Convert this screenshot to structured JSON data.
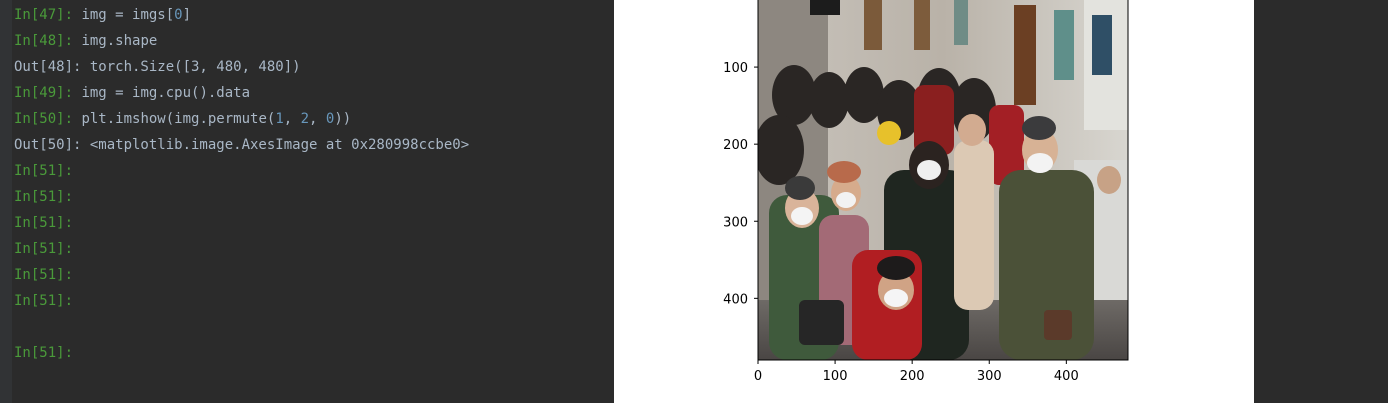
{
  "console": {
    "lines": [
      {
        "prompt": "In[47]: ",
        "kind": "in",
        "code": [
          {
            "t": "img = imgs["
          },
          {
            "t": "0",
            "num": true
          },
          {
            "t": "]"
          }
        ]
      },
      {
        "prompt": "In[48]: ",
        "kind": "in",
        "code": [
          {
            "t": "img.shape"
          }
        ]
      },
      {
        "prompt": "Out[48]: ",
        "kind": "out",
        "code": [
          {
            "t": "torch.Size([3, 480, 480])"
          }
        ]
      },
      {
        "prompt": "In[49]: ",
        "kind": "in",
        "code": [
          {
            "t": "img = img.cpu().data"
          }
        ]
      },
      {
        "prompt": "In[50]: ",
        "kind": "in",
        "code": [
          {
            "t": "plt.imshow(img.permute("
          },
          {
            "t": "1",
            "num": true
          },
          {
            "t": ", "
          },
          {
            "t": "2",
            "num": true
          },
          {
            "t": ", "
          },
          {
            "t": "0",
            "num": true
          },
          {
            "t": "))"
          }
        ]
      },
      {
        "prompt": "Out[50]: ",
        "kind": "out",
        "code": [
          {
            "t": "<matplotlib.image.AxesImage at 0x280998ccbe0>"
          }
        ]
      },
      {
        "prompt": "In[51]: ",
        "kind": "in",
        "code": []
      },
      {
        "prompt": "In[51]: ",
        "kind": "in",
        "code": []
      },
      {
        "prompt": "In[51]: ",
        "kind": "in",
        "code": []
      },
      {
        "prompt": "In[51]: ",
        "kind": "in",
        "code": []
      },
      {
        "prompt": "In[51]: ",
        "kind": "in",
        "code": []
      },
      {
        "prompt": "In[51]: ",
        "kind": "in",
        "code": []
      },
      {
        "prompt": "",
        "kind": "blank",
        "code": []
      },
      {
        "prompt": "In[51]: ",
        "kind": "in",
        "code": []
      }
    ]
  },
  "chart_data": {
    "type": "image",
    "xlim": [
      0,
      480
    ],
    "ylim": [
      480,
      0
    ],
    "x_ticks": [
      0,
      100,
      200,
      300,
      400
    ],
    "y_ticks": [
      100,
      200,
      300,
      400
    ],
    "x_tick_labels": [
      "0",
      "100",
      "200",
      "300",
      "400"
    ],
    "y_tick_labels": [
      "100",
      "200",
      "300",
      "400"
    ],
    "image_description": "photo of a crowded hospital corridor with people wearing face masks"
  },
  "colors": {
    "console_bg": "#2b2b2b",
    "prompt_in": "#4a9a3a",
    "code_text": "#a9b7c6",
    "number": "#6897bb",
    "figure_bg": "#ffffff"
  }
}
